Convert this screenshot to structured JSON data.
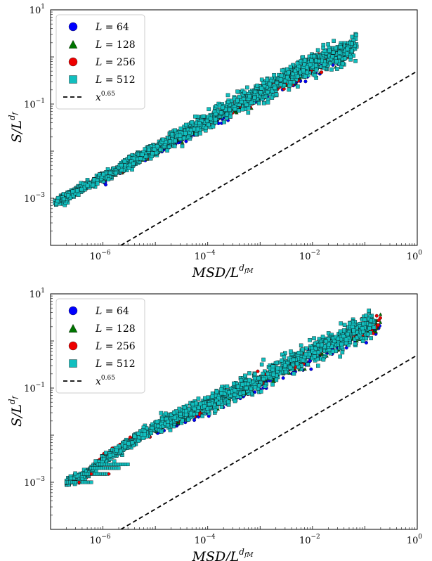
{
  "chart_data": [
    {
      "type": "scatter",
      "xscale": "log",
      "yscale": "log",
      "xlim": [
        1e-07,
        1
      ],
      "ylim": [
        0.0001,
        10
      ],
      "xticks": [
        {
          "value": 1e-06,
          "base": "10",
          "exp": "−6"
        },
        {
          "value": 0.0001,
          "base": "10",
          "exp": "−4"
        },
        {
          "value": 0.01,
          "base": "10",
          "exp": "−2"
        },
        {
          "value": 1,
          "base": "10",
          "exp": "0"
        }
      ],
      "yticks": [
        {
          "value": 0.001,
          "base": "10",
          "exp": "−3"
        },
        {
          "value": 0.1,
          "base": "10",
          "exp": "−1"
        },
        {
          "value": 10,
          "base": "10",
          "exp": "1"
        }
      ],
      "xlabel": {
        "main": "MSD/L",
        "sup": "d",
        "subsup": "fM"
      },
      "ylabel": {
        "main": "S/L",
        "sup": "d",
        "subsup": "f"
      },
      "legend_placement": "top-left",
      "series": [
        {
          "name": "L = 64",
          "label_var": "L",
          "label_num": "= 64",
          "marker": "circle",
          "color": "#0000ff",
          "x": [
            1e-06,
            1e-05,
            0.0001,
            0.001,
            0.01,
            0.04
          ],
          "y": [
            0.0023,
            0.0095,
            0.038,
            0.15,
            0.55,
            1.3
          ]
        },
        {
          "name": "L = 128",
          "label_var": "L",
          "label_num": "= 128",
          "marker": "triangle",
          "color": "#007400",
          "x": [
            1e-06,
            1e-05,
            0.0001,
            0.001,
            0.01,
            0.05
          ],
          "y": [
            0.0024,
            0.0098,
            0.04,
            0.16,
            0.6,
            1.4
          ]
        },
        {
          "name": "L = 256",
          "label_var": "L",
          "label_num": "= 256",
          "marker": "circle",
          "color": "#ee0000",
          "x": [
            1e-06,
            1e-05,
            0.0001,
            0.001,
            0.01,
            0.06
          ],
          "y": [
            0.0025,
            0.01,
            0.042,
            0.17,
            0.65,
            1.5
          ]
        },
        {
          "name": "L = 512",
          "label_var": "L",
          "label_num": "= 512",
          "marker": "square",
          "color": "#11bfbf",
          "x": [
            1.2e-07,
            1e-06,
            1e-05,
            0.0001,
            0.001,
            0.01,
            0.07
          ],
          "y": [
            0.0008,
            0.0028,
            0.011,
            0.045,
            0.18,
            0.7,
            1.6
          ]
        },
        {
          "name": "x^0.65",
          "label_var": "x",
          "label_sup": "0.65",
          "line": "dashed",
          "color": "#000000",
          "x": [
            2.2e-06,
            1
          ],
          "y": [
            0.0001,
            0.5
          ]
        }
      ]
    },
    {
      "type": "scatter",
      "xscale": "log",
      "yscale": "log",
      "xlim": [
        1e-07,
        1
      ],
      "ylim": [
        0.0001,
        10
      ],
      "xticks": [
        {
          "value": 1e-06,
          "base": "10",
          "exp": "−6"
        },
        {
          "value": 0.0001,
          "base": "10",
          "exp": "−4"
        },
        {
          "value": 0.01,
          "base": "10",
          "exp": "−2"
        },
        {
          "value": 1,
          "base": "10",
          "exp": "0"
        }
      ],
      "yticks": [
        {
          "value": 0.001,
          "base": "10",
          "exp": "−3"
        },
        {
          "value": 0.1,
          "base": "10",
          "exp": "−1"
        },
        {
          "value": 10,
          "base": "10",
          "exp": "1"
        }
      ],
      "xlabel": {
        "main": "MSD/L",
        "sup": "d",
        "subsup": "fM"
      },
      "ylabel": {
        "main": "S/L",
        "sup": "d",
        "subsup": "f"
      },
      "legend_placement": "top-left",
      "series": [
        {
          "name": "L = 64",
          "label_var": "L",
          "label_num": "= 64",
          "marker": "circle",
          "color": "#0000ff",
          "x": [
            1e-05,
            0.0001,
            0.001,
            0.01,
            0.1,
            0.2
          ],
          "y": [
            0.012,
            0.035,
            0.12,
            0.45,
            1.5,
            2.2
          ]
        },
        {
          "name": "L = 128",
          "label_var": "L",
          "label_num": "= 128",
          "marker": "triangle",
          "color": "#007400",
          "x": [
            1e-05,
            0.0001,
            0.001,
            0.01,
            0.1,
            0.2
          ],
          "y": [
            0.013,
            0.038,
            0.13,
            0.5,
            1.7,
            2.4
          ]
        },
        {
          "name": "L = 256",
          "label_var": "L",
          "label_num": "= 256",
          "marker": "circle",
          "color": "#ee0000",
          "x": [
            3.5e-07,
            1e-06,
            1e-05,
            0.0001,
            0.001,
            0.01,
            0.1,
            0.2
          ],
          "y": [
            0.001,
            0.0035,
            0.014,
            0.04,
            0.14,
            0.55,
            1.9,
            2.6
          ]
        },
        {
          "name": "L = 512",
          "label_var": "L",
          "label_num": "= 512",
          "marker": "square",
          "color": "#11bfbf",
          "x": [
            2e-07,
            5e-07,
            1e-06,
            1e-05,
            0.0001,
            0.001,
            0.01,
            0.1,
            0.15
          ],
          "y": [
            0.001,
            0.0015,
            0.003,
            0.015,
            0.045,
            0.15,
            0.6,
            2.0,
            2.5
          ]
        },
        {
          "name": "x^0.65",
          "label_var": "x",
          "label_sup": "0.65",
          "line": "dashed",
          "color": "#000000",
          "x": [
            2.2e-06,
            1
          ],
          "y": [
            0.0001,
            0.5
          ]
        }
      ]
    }
  ]
}
